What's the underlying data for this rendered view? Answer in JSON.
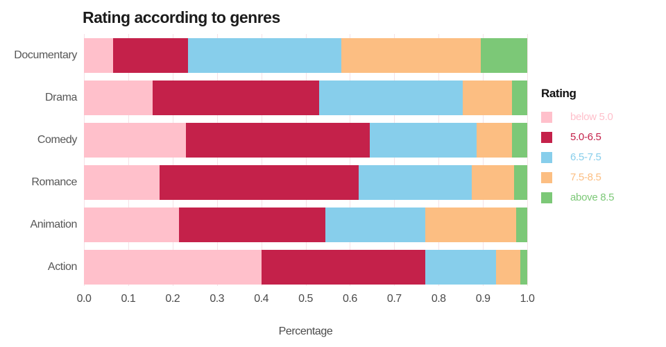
{
  "title": "Rating according to genres",
  "chart_data": {
    "type": "bar",
    "orientation": "horizontal",
    "stacked": true,
    "title": "Rating according to genres",
    "xlabel": "Percentage",
    "legend_title": "Rating",
    "legend_position": "right",
    "grid": true,
    "xlim": [
      0.0,
      1.0
    ],
    "x_ticks": [
      "0.0",
      "0.1",
      "0.2",
      "0.3",
      "0.4",
      "0.5",
      "0.6",
      "0.7",
      "0.8",
      "0.9",
      "1.0"
    ],
    "categories": [
      "Documentary",
      "Drama",
      "Comedy",
      "Romance",
      "Animation",
      "Action"
    ],
    "series": [
      {
        "name": "below 5.0",
        "color": "#ffc0cb",
        "values": [
          0.065,
          0.155,
          0.23,
          0.17,
          0.215,
          0.4
        ]
      },
      {
        "name": "5.0-6.5",
        "color": "#c4214a",
        "values": [
          0.17,
          0.375,
          0.415,
          0.45,
          0.33,
          0.37
        ]
      },
      {
        "name": "6.5-7.5",
        "color": "#87ceeb",
        "values": [
          0.345,
          0.325,
          0.24,
          0.255,
          0.225,
          0.16
        ]
      },
      {
        "name": "7.5-8.5",
        "color": "#fcbe82",
        "values": [
          0.315,
          0.11,
          0.08,
          0.095,
          0.205,
          0.055
        ]
      },
      {
        "name": "above 8.5",
        "color": "#7cc877",
        "values": [
          0.105,
          0.035,
          0.035,
          0.03,
          0.025,
          0.015
        ]
      }
    ],
    "gridline_color": "#f5e1e6"
  }
}
